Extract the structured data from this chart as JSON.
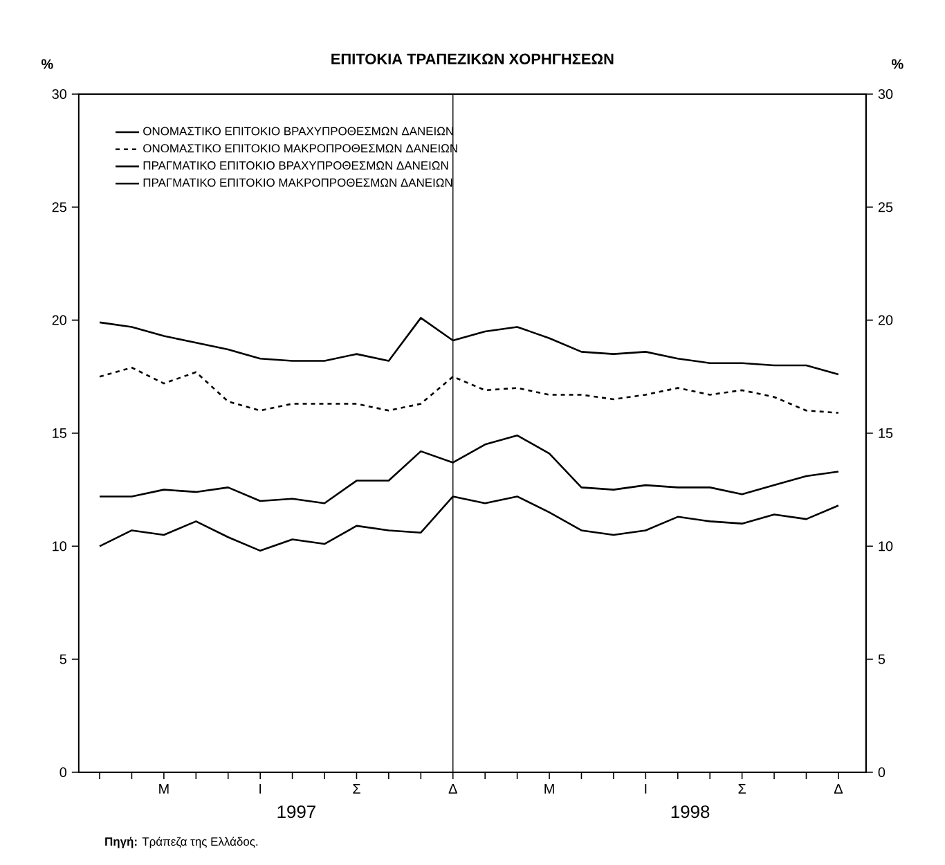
{
  "chart_data": {
    "type": "line",
    "title": "ΕΠΙΤΟΚΙΑ ΤΡΑΠΕΖΙΚΩΝ ΧΟΡΗΓΗΣΕΩΝ",
    "ylabel": "%",
    "y2label": "%",
    "categories": [
      null,
      null,
      "Μ",
      null,
      null,
      "Ι",
      null,
      null,
      "Σ",
      null,
      null,
      "Δ",
      null,
      null,
      "Μ",
      null,
      null,
      "Ι",
      null,
      null,
      "Σ",
      null,
      null,
      "Δ"
    ],
    "series": [
      {
        "name": "ΟΝΟΜΑΣΤΙΚΟ ΕΠΙΤΟΚΙΟ ΒΡΑΧΥΠΡΟΘΕΣΜΩΝ ΔΑΝΕΙΩΝ",
        "color": "#000000",
        "line_style": "solid",
        "values": [
          19.9,
          19.7,
          19.3,
          19.0,
          18.7,
          18.3,
          18.2,
          18.2,
          18.5,
          18.2,
          20.1,
          19.1,
          19.5,
          19.7,
          19.2,
          18.6,
          18.5,
          18.6,
          18.3,
          18.1,
          18.1,
          18.0,
          18.0,
          17.6
        ]
      },
      {
        "name": "ΟΝΟΜΑΣΤΙΚΟ ΕΠΙΤΟΚΙΟ ΜΑΚΡΟΠΡΟΘΕΣΜΩΝ ΔΑΝΕΙΩΝ",
        "color": "#000000",
        "line_style": "dashed",
        "values": [
          17.5,
          17.9,
          17.2,
          17.7,
          16.4,
          16.0,
          16.3,
          16.3,
          16.3,
          16.0,
          16.3,
          17.5,
          16.9,
          17.0,
          16.7,
          16.7,
          16.5,
          16.7,
          17.0,
          16.7,
          16.9,
          16.6,
          16.0,
          15.9
        ]
      },
      {
        "name": "ΠΡΑΓΜΑΤΙΚΟ ΕΠΙΤΟΚΙΟ ΒΡΑΧΥΠΡΟΘΕΣΜΩΝ ΔΑΝΕΙΩΝ",
        "color": "#000000",
        "line_style": "solid",
        "values": [
          12.2,
          12.2,
          12.5,
          12.4,
          12.6,
          12.0,
          12.1,
          11.9,
          12.9,
          12.9,
          14.2,
          13.7,
          14.5,
          14.9,
          14.1,
          12.6,
          12.5,
          12.7,
          12.6,
          12.6,
          12.3,
          12.7,
          13.1,
          13.3
        ]
      },
      {
        "name": "ΠΡΑΓΜΑΤΙΚΟ ΕΠΙΤΟΚΙΟ ΜΑΚΡΟΠΡΟΘΕΣΜΩΝ ΔΑΝΕΙΩΝ",
        "color": "#000000",
        "line_style": "solid",
        "values": [
          10.0,
          10.7,
          10.5,
          11.1,
          10.4,
          9.8,
          10.3,
          10.1,
          10.9,
          10.7,
          10.6,
          12.2,
          11.9,
          12.2,
          11.5,
          10.7,
          10.5,
          10.7,
          11.3,
          11.1,
          11.0,
          11.4,
          11.2,
          11.8
        ]
      }
    ],
    "ylim": [
      0,
      30
    ],
    "yticks": [
      0,
      5,
      10,
      15,
      20,
      25,
      30
    ],
    "y2lim": [
      0,
      30
    ],
    "y2ticks": [
      0,
      5,
      10,
      15,
      20,
      25,
      30
    ],
    "legend": "top left",
    "marker": "none",
    "annotations": [
      "1997",
      "1998",
      "**Πηγή:** Τράπεζα της Ελλάδος."
    ]
  }
}
